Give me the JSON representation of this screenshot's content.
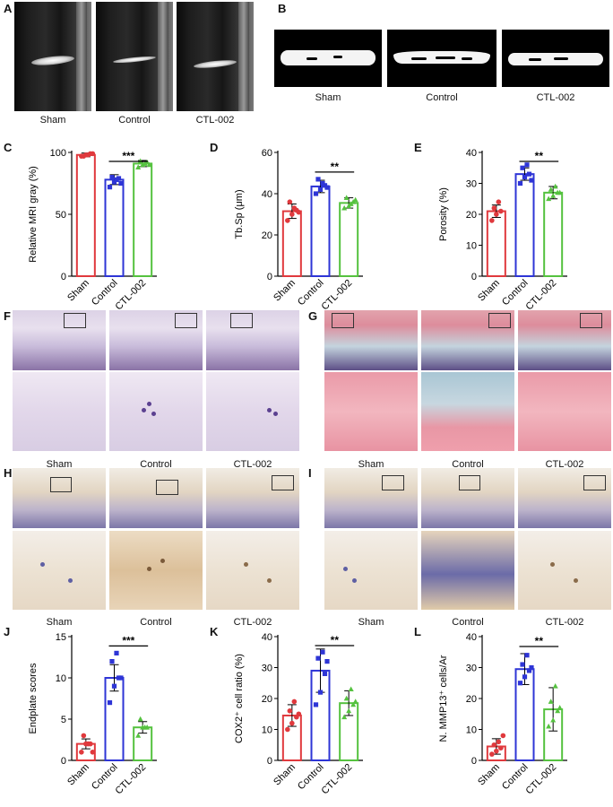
{
  "panel_labels": [
    "A",
    "B",
    "C",
    "D",
    "E",
    "F",
    "G",
    "H",
    "I",
    "J",
    "K",
    "L"
  ],
  "groups": [
    "Sham",
    "Control",
    "CTL-002"
  ],
  "colors": {
    "sham": "#e0393d",
    "control": "#2e35d6",
    "ctl": "#55c23f"
  },
  "chart_data": [
    {
      "id": "C",
      "type": "bar",
      "ylabel": "Relative MRI gray (%)",
      "categories": [
        "Sham",
        "Control",
        "CTL-002"
      ],
      "ylim": [
        0,
        100
      ],
      "yticks": [
        "0",
        "50",
        "100"
      ],
      "values": [
        98,
        78,
        91
      ],
      "errors": [
        1.5,
        4,
        2.5
      ],
      "points": [
        [
          97,
          98,
          99,
          97,
          98,
          99
        ],
        [
          72,
          76,
          79,
          80,
          78,
          75
        ],
        [
          88,
          90,
          92,
          93,
          91,
          90
        ]
      ],
      "significance": {
        "between": [
          "Control",
          "CTL-002"
        ],
        "label": "***"
      }
    },
    {
      "id": "D",
      "type": "bar",
      "ylabel": "Tb.Sp (μm)",
      "categories": [
        "Sham",
        "Control",
        "CTL-002"
      ],
      "ylim": [
        0,
        60
      ],
      "yticks": [
        "0",
        "20",
        "40",
        "60"
      ],
      "values": [
        31.5,
        43.5,
        35.5
      ],
      "errors": [
        3.5,
        3,
        2.5
      ],
      "points": [
        [
          27,
          30,
          32,
          36,
          33,
          31
        ],
        [
          40,
          42,
          44,
          47,
          45,
          43
        ],
        [
          33,
          34,
          36,
          38,
          35,
          37
        ]
      ],
      "significance": {
        "between": [
          "Control",
          "CTL-002"
        ],
        "label": "**"
      }
    },
    {
      "id": "E",
      "type": "bar",
      "ylabel": "Porosity (%)",
      "categories": [
        "Sham",
        "Control",
        "CTL-002"
      ],
      "ylim": [
        0,
        40
      ],
      "yticks": [
        "0",
        "10",
        "20",
        "30",
        "40"
      ],
      "values": [
        21,
        33,
        27
      ],
      "errors": [
        2,
        2,
        2
      ],
      "points": [
        [
          18,
          20,
          21,
          22,
          24
        ],
        [
          30,
          32,
          33,
          35,
          36,
          31
        ],
        [
          25,
          26,
          27,
          28,
          29,
          27
        ]
      ],
      "significance": {
        "between": [
          "Control",
          "CTL-002"
        ],
        "label": "**"
      }
    },
    {
      "id": "J",
      "type": "bar",
      "ylabel": "Endplate scores",
      "categories": [
        "Sham",
        "Control",
        "CTL-002"
      ],
      "ylim": [
        0,
        15
      ],
      "yticks": [
        "0",
        "5",
        "10",
        "15"
      ],
      "values": [
        2,
        10,
        4
      ],
      "errors": [
        0.6,
        1.6,
        0.7
      ],
      "points": [
        [
          1,
          2,
          2,
          3,
          2,
          1
        ],
        [
          7,
          9,
          10,
          12,
          13,
          10
        ],
        [
          3,
          4,
          4,
          5,
          4
        ]
      ],
      "significance": {
        "between": [
          "Control",
          "CTL-002"
        ],
        "label": "***"
      }
    },
    {
      "id": "K",
      "type": "bar",
      "ylabel": "COX2⁺ cell ratio (%)",
      "categories": [
        "Sham",
        "Control",
        "CTL-002"
      ],
      "ylim": [
        0,
        40
      ],
      "yticks": [
        "0",
        "10",
        "20",
        "30",
        "40"
      ],
      "values": [
        14.5,
        29,
        18.5
      ],
      "errors": [
        3.5,
        7,
        4
      ],
      "points": [
        [
          10,
          12,
          14,
          16,
          19,
          15
        ],
        [
          18,
          22,
          28,
          33,
          35,
          32
        ],
        [
          14,
          16,
          18,
          20,
          23,
          19
        ]
      ],
      "significance": {
        "between": [
          "Control",
          "CTL-002"
        ],
        "label": "**"
      }
    },
    {
      "id": "L",
      "type": "bar",
      "ylabel": "N. MMP13⁺ cells/Ar",
      "categories": [
        "Sham",
        "Control",
        "CTL-002"
      ],
      "ylim": [
        0,
        40
      ],
      "yticks": [
        "0",
        "10",
        "20",
        "30",
        "40"
      ],
      "values": [
        4.5,
        29.5,
        16.5
      ],
      "errors": [
        2.5,
        5,
        7
      ],
      "points": [
        [
          2,
          3,
          4,
          5,
          6,
          8
        ],
        [
          25,
          27,
          29,
          31,
          34,
          30
        ],
        [
          11,
          13,
          16,
          19,
          24,
          17
        ]
      ],
      "significance": {
        "between": [
          "Control",
          "CTL-002"
        ],
        "label": "**"
      }
    }
  ]
}
